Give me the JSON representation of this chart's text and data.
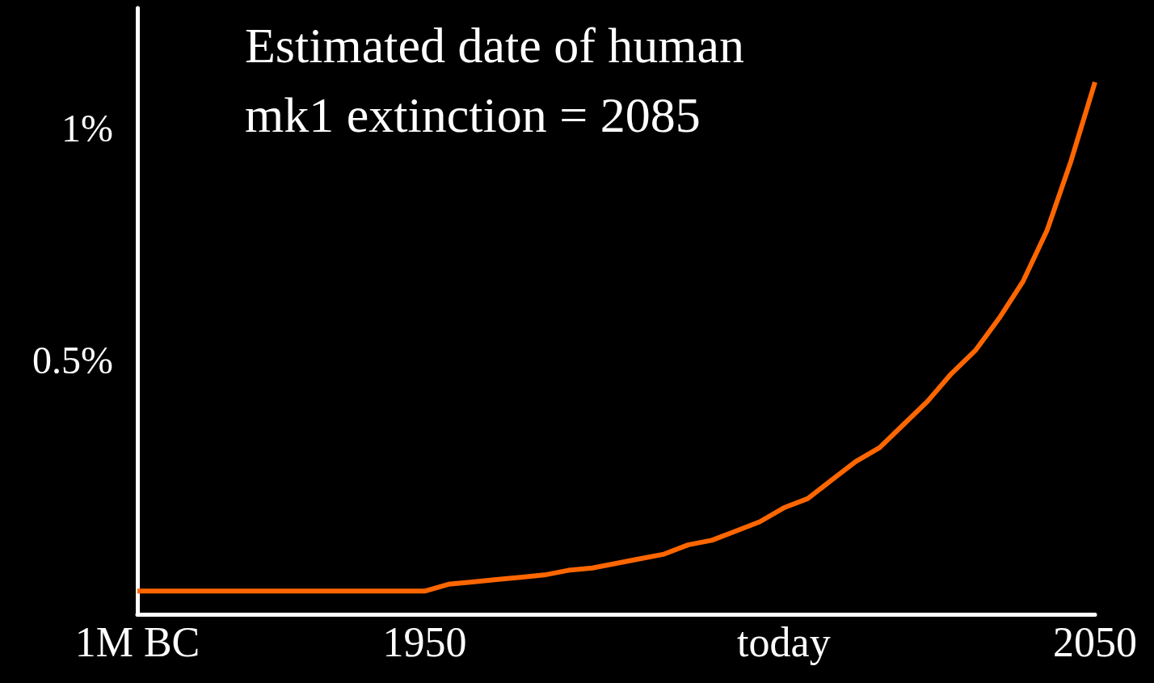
{
  "chart_data": {
    "type": "line",
    "title": "Estimated date of human mk1 extinction = 2085",
    "categories": [
      "1M BC",
      null,
      null,
      null,
      null,
      null,
      null,
      null,
      null,
      null,
      null,
      null,
      "1950",
      null,
      null,
      null,
      null,
      null,
      null,
      null,
      null,
      null,
      null,
      null,
      null,
      null,
      null,
      "today",
      null,
      null,
      null,
      null,
      null,
      null,
      null,
      null,
      null,
      null,
      null,
      null,
      "2050"
    ],
    "series": [
      {
        "color": "#ff6600",
        "values": [
          0,
          0,
          0,
          0,
          0,
          0,
          0,
          0,
          0,
          0,
          0,
          0,
          0,
          0.015,
          0.02,
          0.025,
          0.03,
          0.035,
          0.045,
          0.05,
          0.06,
          0.07,
          0.08,
          0.1,
          0.11,
          0.13,
          0.15,
          0.18,
          0.2,
          0.24,
          0.28,
          0.31,
          0.36,
          0.41,
          0.47,
          0.52,
          0.59,
          0.67,
          0.78,
          0.93,
          1.1
        ]
      }
    ],
    "ylim": [
      -0.05,
      1.26
    ],
    "yticks": [
      {
        "value": 0.5,
        "label": "0.5%"
      },
      {
        "value": 1,
        "label": "1%"
      }
    ],
    "grid": false,
    "marker": "none",
    "line_style": "solid"
  }
}
